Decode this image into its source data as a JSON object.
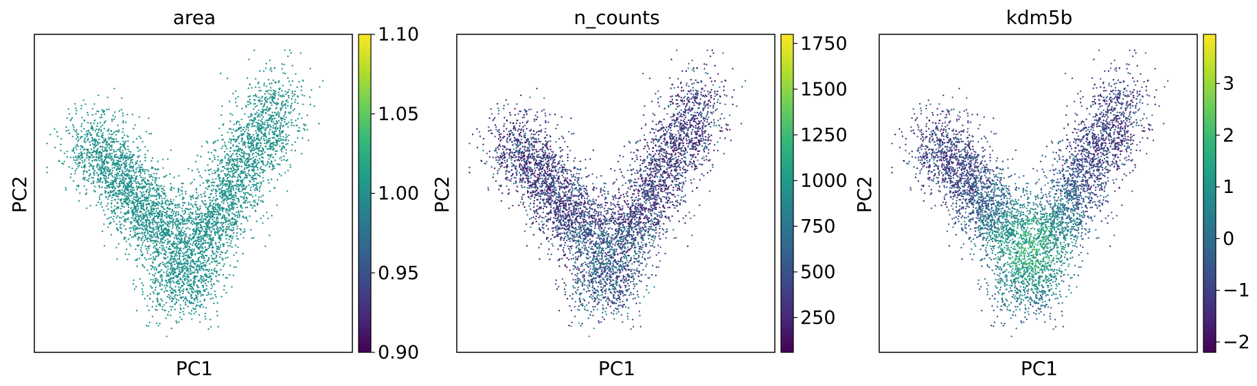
{
  "colormap": "viridis",
  "colormap_stops": [
    "#440154",
    "#482878",
    "#3e4a89",
    "#31688e",
    "#26828e",
    "#1f9e89",
    "#35b779",
    "#6ece58",
    "#b5de2b",
    "#fde725"
  ],
  "chart_data": [
    {
      "type": "scatter",
      "title": "area",
      "xlabel": "PC1",
      "ylabel": "PC2",
      "color_value": 1.0,
      "point_color": "#21918c",
      "colorbar": {
        "min": 0.9,
        "max": 1.1,
        "ticks": [
          0.9,
          0.95,
          1.0,
          1.05,
          1.1
        ],
        "tick_labels": [
          "0.90",
          "0.95",
          "1.00",
          "1.05",
          "1.10"
        ]
      },
      "shape": "v",
      "color_mode": "constant"
    },
    {
      "type": "scatter",
      "title": "n_counts",
      "xlabel": "PC1",
      "ylabel": "PC2",
      "colorbar": {
        "min": 60,
        "max": 1800,
        "ticks": [
          250,
          500,
          750,
          1000,
          1250,
          1500,
          1750
        ],
        "tick_labels": [
          "250",
          "500",
          "750",
          "1000",
          "1250",
          "1500",
          "1750"
        ]
      },
      "shape": "v",
      "color_mode": "counts"
    },
    {
      "type": "scatter",
      "title": "kdm5b",
      "xlabel": "PC1",
      "ylabel": "PC2",
      "colorbar": {
        "min": -2.2,
        "max": 3.95,
        "ticks": [
          -2,
          -1,
          0,
          1,
          2,
          3
        ],
        "tick_labels": [
          "−2",
          "−1",
          "0",
          "1",
          "2",
          "3"
        ]
      },
      "shape": "v",
      "color_mode": "expression"
    }
  ]
}
